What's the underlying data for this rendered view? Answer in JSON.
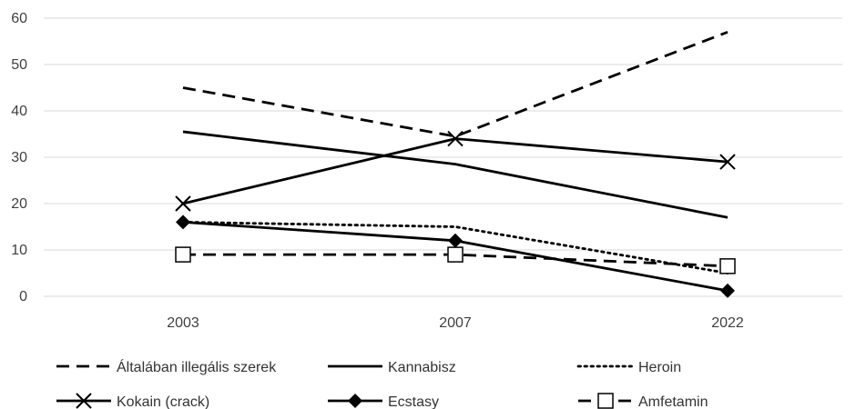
{
  "chart_data": {
    "type": "line",
    "title": "",
    "xlabel": "",
    "ylabel": "",
    "categories": [
      "2003",
      "2007",
      "2022"
    ],
    "ylim": [
      0,
      60
    ],
    "yticks": [
      0,
      10,
      20,
      30,
      40,
      50,
      60
    ],
    "grid": "horizontal",
    "legend_position": "bottom",
    "series": [
      {
        "name": "Általában illegális szerek",
        "values": [
          45,
          34.5,
          57
        ],
        "color": "#000000",
        "line": "dashed",
        "marker": "none"
      },
      {
        "name": "Kannabisz",
        "values": [
          35.5,
          28.5,
          17
        ],
        "color": "#000000",
        "line": "solid",
        "marker": "none"
      },
      {
        "name": "Heroin",
        "values": [
          16,
          15,
          5
        ],
        "color": "#000000",
        "line": "dotted",
        "marker": "none"
      },
      {
        "name": "Kokain (crack)",
        "values": [
          20,
          34,
          29
        ],
        "color": "#000000",
        "line": "solid",
        "marker": "x"
      },
      {
        "name": "Ecstasy",
        "values": [
          16,
          12,
          1.2
        ],
        "color": "#000000",
        "line": "solid",
        "marker": "diamond"
      },
      {
        "name": "Amfetamin",
        "values": [
          9,
          9,
          6.5
        ],
        "color": "#000000",
        "line": "dashed",
        "marker": "square-open"
      }
    ]
  }
}
